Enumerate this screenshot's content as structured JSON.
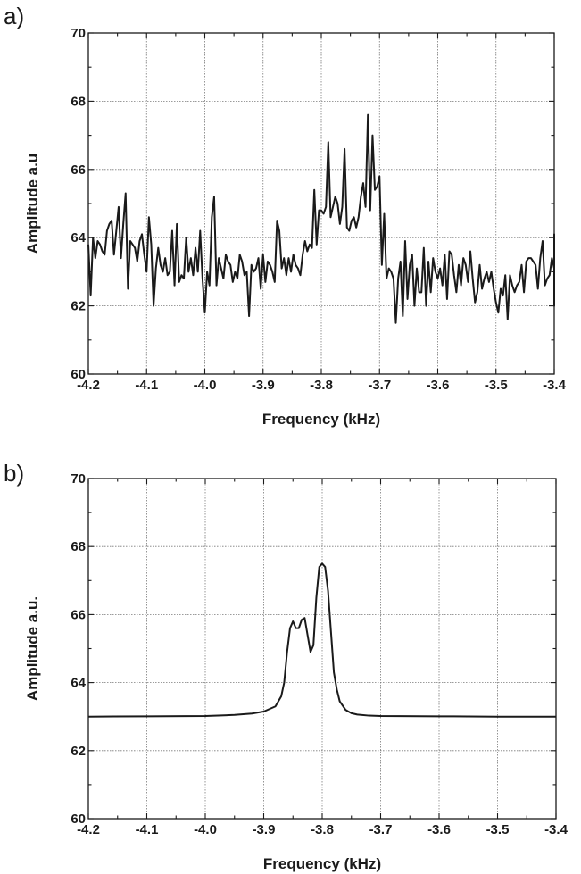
{
  "chart_data": [
    {
      "panel_label": "a)",
      "type": "line",
      "xlabel": "Frequency (kHz)",
      "ylabel": "Amplitude a.u",
      "xlim": [
        -4.2,
        -3.4
      ],
      "ylim": [
        60,
        70
      ],
      "grid": true,
      "x_ticks": [
        -4.2,
        -4.1,
        -4.0,
        -3.9,
        -3.8,
        -3.7,
        -3.6,
        -3.5,
        -3.4
      ],
      "x_tick_labels": [
        "-4.2",
        "-4.1",
        "-4.0",
        "-3.9",
        "-3.8",
        "-3.7",
        "-3.6",
        "-3.5",
        "-3.4"
      ],
      "y_ticks": [
        60,
        62,
        64,
        66,
        68,
        70
      ],
      "y_tick_labels": [
        "60",
        "62",
        "64",
        "66",
        "68",
        "70"
      ],
      "series": [
        {
          "x_start": -4.2,
          "x_step": 0.004,
          "y": [
            63.8,
            62.3,
            64.0,
            63.4,
            63.9,
            63.8,
            63.6,
            63.5,
            64.2,
            64.4,
            64.5,
            63.5,
            64.2,
            64.9,
            63.4,
            64.4,
            65.3,
            62.5,
            63.9,
            63.8,
            63.7,
            63.3,
            63.9,
            64.1,
            63.5,
            63.0,
            64.6,
            63.8,
            62.0,
            63.1,
            63.7,
            63.2,
            63.0,
            63.4,
            62.9,
            63.0,
            64.2,
            62.6,
            64.4,
            62.7,
            62.9,
            62.8,
            64.0,
            63.0,
            63.4,
            62.9,
            63.7,
            63.0,
            64.2,
            62.8,
            61.8,
            63.0,
            62.6,
            64.6,
            65.2,
            62.6,
            63.4,
            63.1,
            62.8,
            63.5,
            63.3,
            63.2,
            62.7,
            63.0,
            62.8,
            63.5,
            63.3,
            62.9,
            63.0,
            61.7,
            63.2,
            63.0,
            63.1,
            63.4,
            62.5,
            63.5,
            62.7,
            63.3,
            63.2,
            63.0,
            62.7,
            64.5,
            64.2,
            63.1,
            63.4,
            62.9,
            63.4,
            63.0,
            63.5,
            63.2,
            63.1,
            62.9,
            63.5,
            63.9,
            63.6,
            63.8,
            63.7,
            65.4,
            63.8,
            64.8,
            64.8,
            64.7,
            64.9,
            66.8,
            64.6,
            64.9,
            65.2,
            65.0,
            64.4,
            64.9,
            66.6,
            64.3,
            64.2,
            64.5,
            64.6,
            64.3,
            64.6,
            65.2,
            65.6,
            64.9,
            67.6,
            64.8,
            67.0,
            65.4,
            65.5,
            65.8,
            63.2,
            64.7,
            62.8,
            63.1,
            63.0,
            62.8,
            61.5,
            62.8,
            63.3,
            61.7,
            63.9,
            62.2,
            63.2,
            63.5,
            62.0,
            63.1,
            62.4,
            62.4,
            63.7,
            62.0,
            63.3,
            62.4,
            63.4,
            63.0,
            62.8,
            63.1,
            62.6,
            63.5,
            62.2,
            63.6,
            63.5,
            62.9,
            62.4,
            63.2,
            62.6,
            63.4,
            63.2,
            62.7,
            63.6,
            62.8,
            62.1,
            62.4,
            63.2,
            62.5,
            62.8,
            63.0,
            62.7,
            63.0,
            62.5,
            62.1,
            61.8,
            62.5,
            62.3,
            62.9,
            61.6,
            62.9,
            62.6,
            62.4,
            62.6,
            62.7,
            63.2,
            62.4,
            63.3,
            63.4,
            63.4,
            63.3,
            63.2,
            62.5,
            63.4,
            63.9,
            62.6,
            62.8,
            62.9,
            63.4,
            63.1,
            63.2,
            63.1,
            63.1,
            63.0,
            62.5,
            63.6,
            62.9,
            63.8,
            63.0,
            63.7,
            62.4,
            63.1,
            62.8,
            63.6,
            62.8,
            63.4,
            62.1,
            63.3,
            62.0,
            63.5,
            62.8,
            62.9,
            63.1,
            63.3,
            62.6,
            64.1,
            64.0,
            63.0
          ]
        }
      ]
    },
    {
      "panel_label": "b)",
      "type": "line",
      "xlabel": "Frequency (kHz)",
      "ylabel": "Amplitude a.u.",
      "xlim": [
        -4.2,
        -3.4
      ],
      "ylim": [
        60,
        70
      ],
      "grid": true,
      "x_ticks": [
        -4.2,
        -4.1,
        -4.0,
        -3.9,
        -3.8,
        -3.7,
        -3.6,
        -3.5,
        -3.4
      ],
      "x_tick_labels": [
        "-4.2",
        "-4.1",
        "-4.0",
        "-3.9",
        "-3.8",
        "-3.7",
        "-3.6",
        "-3.5",
        "-3.4"
      ],
      "y_ticks": [
        60,
        62,
        64,
        66,
        68,
        70
      ],
      "y_tick_labels": [
        "60",
        "62",
        "64",
        "66",
        "68",
        "70"
      ],
      "series": [
        {
          "x": [
            -4.2,
            -4.1,
            -4.0,
            -3.95,
            -3.92,
            -3.9,
            -3.88,
            -3.87,
            -3.865,
            -3.86,
            -3.855,
            -3.85,
            -3.845,
            -3.84,
            -3.835,
            -3.83,
            -3.825,
            -3.82,
            -3.815,
            -3.81,
            -3.805,
            -3.8,
            -3.795,
            -3.79,
            -3.785,
            -3.78,
            -3.775,
            -3.77,
            -3.76,
            -3.75,
            -3.74,
            -3.72,
            -3.7,
            -3.6,
            -3.5,
            -3.4
          ],
          "y": [
            63.0,
            63.01,
            63.02,
            63.05,
            63.09,
            63.15,
            63.3,
            63.6,
            64.0,
            64.9,
            65.6,
            65.8,
            65.6,
            65.6,
            65.85,
            65.9,
            65.4,
            64.9,
            65.1,
            66.5,
            67.4,
            67.5,
            67.4,
            66.7,
            65.5,
            64.3,
            63.8,
            63.45,
            63.2,
            63.1,
            63.06,
            63.03,
            63.02,
            63.01,
            63.0,
            63.0
          ]
        }
      ]
    }
  ]
}
